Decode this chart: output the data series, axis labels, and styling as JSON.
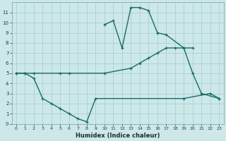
{
  "xlabel": "Humidex (Indice chaleur)",
  "bg_color": "#cce8e8",
  "grid_color": "#aacaca",
  "line_color": "#1a6b6b",
  "xlim": [
    -0.5,
    23.5
  ],
  "ylim": [
    0,
    12
  ],
  "xticks": [
    0,
    1,
    2,
    3,
    4,
    5,
    6,
    7,
    8,
    9,
    10,
    11,
    12,
    13,
    14,
    15,
    16,
    17,
    18,
    19,
    20,
    21,
    22,
    23
  ],
  "yticks": [
    0,
    1,
    2,
    3,
    4,
    5,
    6,
    7,
    8,
    9,
    10,
    11
  ],
  "series1_x": [
    0,
    1,
    2,
    5,
    6,
    10,
    13,
    14,
    15,
    16,
    17,
    18,
    19,
    20
  ],
  "series1_y": [
    5.0,
    5.0,
    5.0,
    5.0,
    5.0,
    5.0,
    5.5,
    6.0,
    6.5,
    7.0,
    7.5,
    7.5,
    7.5,
    7.5
  ],
  "series2_x": [
    10,
    11,
    12,
    13,
    14,
    15,
    16,
    17,
    19,
    20,
    21,
    23
  ],
  "series2_y": [
    9.8,
    10.2,
    7.5,
    11.5,
    11.5,
    11.2,
    9.0,
    8.8,
    7.5,
    5.0,
    3.0,
    2.5
  ],
  "series3_x": [
    0,
    1,
    2,
    3,
    4,
    5,
    6,
    7,
    8,
    9,
    19,
    22,
    23
  ],
  "series3_y": [
    5.0,
    5.0,
    4.5,
    2.5,
    2.0,
    1.5,
    1.0,
    0.5,
    0.2,
    2.5,
    2.5,
    3.0,
    2.5
  ]
}
